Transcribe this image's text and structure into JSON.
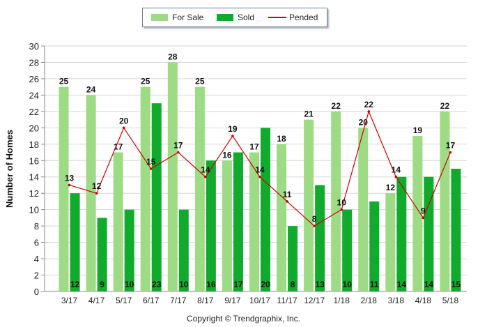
{
  "chart_data": {
    "type": "bar",
    "categories": [
      "3/17",
      "4/17",
      "5/17",
      "6/17",
      "7/17",
      "8/17",
      "9/17",
      "10/17",
      "11/17",
      "12/17",
      "1/18",
      "2/18",
      "3/18",
      "4/18",
      "5/18"
    ],
    "series": [
      {
        "name": "For Sale",
        "type": "bar",
        "color": "#9ddb84",
        "values": [
          25,
          24,
          17,
          25,
          28,
          25,
          16,
          17,
          18,
          21,
          22,
          20,
          12,
          19,
          22
        ]
      },
      {
        "name": "Sold",
        "type": "bar",
        "color": "#10ab2c",
        "values": [
          12,
          9,
          10,
          23,
          10,
          16,
          17,
          20,
          8,
          13,
          10,
          11,
          14,
          14,
          15
        ]
      },
      {
        "name": "Pended",
        "type": "line",
        "color": "#cc0000",
        "values": [
          13,
          12,
          20,
          15,
          17,
          14,
          19,
          14,
          11,
          8,
          10,
          22,
          14,
          9,
          17
        ]
      }
    ],
    "xlabel": "",
    "ylabel": "Number of Homes",
    "ylim": [
      0,
      30
    ],
    "yticks": [
      0,
      2,
      4,
      6,
      8,
      10,
      12,
      14,
      16,
      18,
      20,
      22,
      24,
      26,
      28,
      30
    ],
    "grid": true,
    "legend_position": "top-center"
  },
  "footer": {
    "copyright": "Copyright © Trendgraphix, Inc."
  }
}
